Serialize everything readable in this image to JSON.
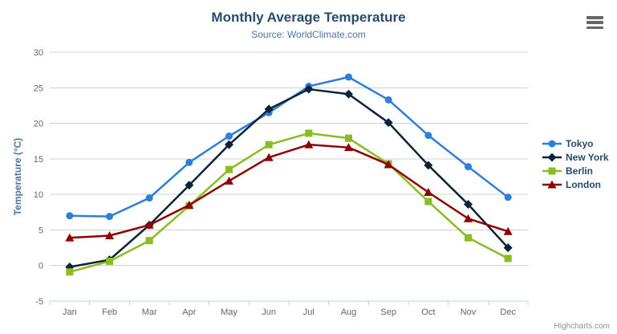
{
  "header": {
    "title": "Monthly Average Temperature",
    "subtitle": "Source: WorldClimate.com"
  },
  "menu": {
    "icon": "hamburger-icon"
  },
  "credits": {
    "text": "Highcharts.com"
  },
  "chart_data": {
    "type": "line",
    "title": "Monthly Average Temperature",
    "subtitle": "Source: WorldClimate.com",
    "xlabel": "",
    "ylabel": "Temperature (°C)",
    "ylim": [
      -5,
      30
    ],
    "yticks": [
      -5,
      0,
      5,
      10,
      15,
      20,
      25,
      30
    ],
    "grid": "horizontal",
    "legend_position": "right",
    "categories": [
      "Jan",
      "Feb",
      "Mar",
      "Apr",
      "May",
      "Jun",
      "Jul",
      "Aug",
      "Sep",
      "Oct",
      "Nov",
      "Dec"
    ],
    "series": [
      {
        "name": "Tokyo",
        "color": "#2f7ed8",
        "marker": "circle",
        "values": [
          7.0,
          6.9,
          9.5,
          14.5,
          18.2,
          21.5,
          25.2,
          26.5,
          23.3,
          18.3,
          13.9,
          9.6
        ]
      },
      {
        "name": "New York",
        "color": "#0d233a",
        "marker": "diamond",
        "values": [
          -0.2,
          0.8,
          5.7,
          11.3,
          17.0,
          22.0,
          24.8,
          24.1,
          20.1,
          14.1,
          8.6,
          2.5
        ]
      },
      {
        "name": "Berlin",
        "color": "#8bbc21",
        "marker": "square",
        "values": [
          -0.9,
          0.6,
          3.5,
          8.4,
          13.5,
          17.0,
          18.6,
          17.9,
          14.3,
          9.0,
          3.9,
          1.0
        ]
      },
      {
        "name": "London",
        "color": "#910000",
        "marker": "triangle",
        "values": [
          3.9,
          4.2,
          5.7,
          8.5,
          11.9,
          15.2,
          17.0,
          16.6,
          14.2,
          10.3,
          6.6,
          4.8
        ]
      }
    ]
  },
  "colors": {
    "title": "#274b6d",
    "subtitle": "#4d759e",
    "axis_label": "#666666",
    "grid": "#d0d0d0",
    "axis_line": "#c0d0e0",
    "legend_text": "#274b6d",
    "credits": "#909090",
    "burger": "#666666",
    "background": "#ffffff"
  }
}
